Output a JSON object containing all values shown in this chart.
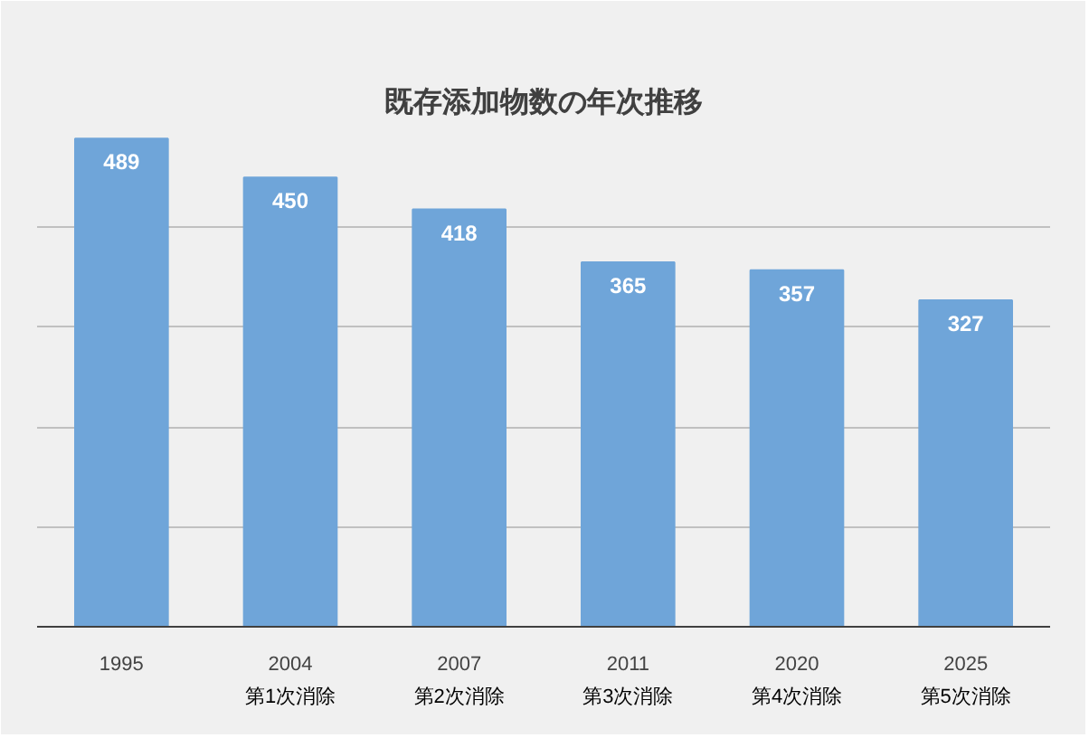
{
  "chart_data": {
    "type": "bar",
    "title": "既存添加物数の年次推移",
    "categories": [
      "1995",
      "2004",
      "2007",
      "2011",
      "2020",
      "2025"
    ],
    "values": [
      489,
      450,
      418,
      365,
      357,
      327
    ],
    "color": "#6fa5d9",
    "ylim": [
      0,
      500
    ],
    "yticks": [
      {
        "value": 0,
        "label": null
      },
      {
        "value": 100,
        "label": null
      },
      {
        "value": 200,
        "label": null
      },
      {
        "value": 300,
        "label": null
      },
      {
        "value": 400,
        "label": null
      },
      {
        "value": 500,
        "label": null
      }
    ],
    "tick_labels": "x",
    "grid": "y",
    "data_labels": true,
    "annotations": [
      "第1次消除",
      "第2次消除",
      "第3次消除",
      "第4次消除",
      "第5次消除"
    ]
  }
}
